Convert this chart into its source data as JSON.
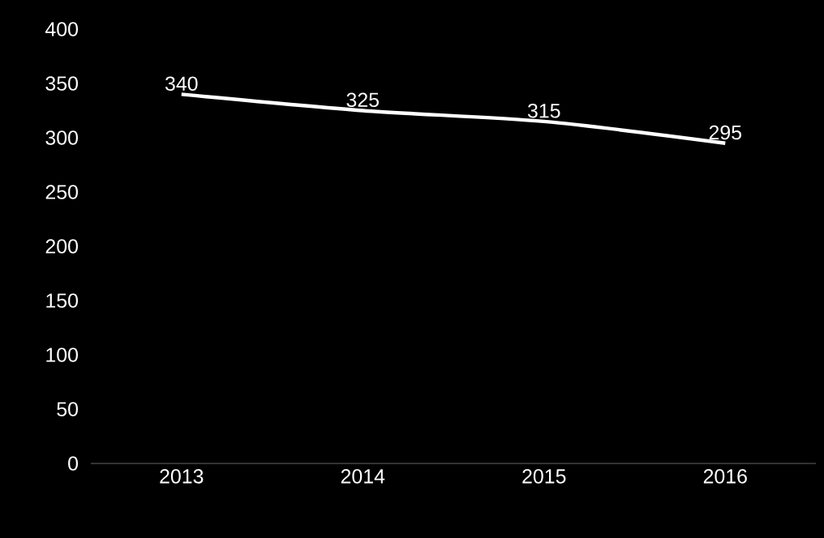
{
  "chart_data": {
    "type": "line",
    "categories": [
      "2013",
      "2014",
      "2015",
      "2016"
    ],
    "values": [
      340,
      325,
      315,
      295
    ],
    "color": "#ffffff",
    "ylim": [
      0,
      400
    ],
    "yticks": [
      0,
      50,
      100,
      150,
      200,
      250,
      300,
      350,
      400
    ],
    "data_labels": true,
    "grid": false,
    "marker": "none",
    "line_style": "solid"
  }
}
